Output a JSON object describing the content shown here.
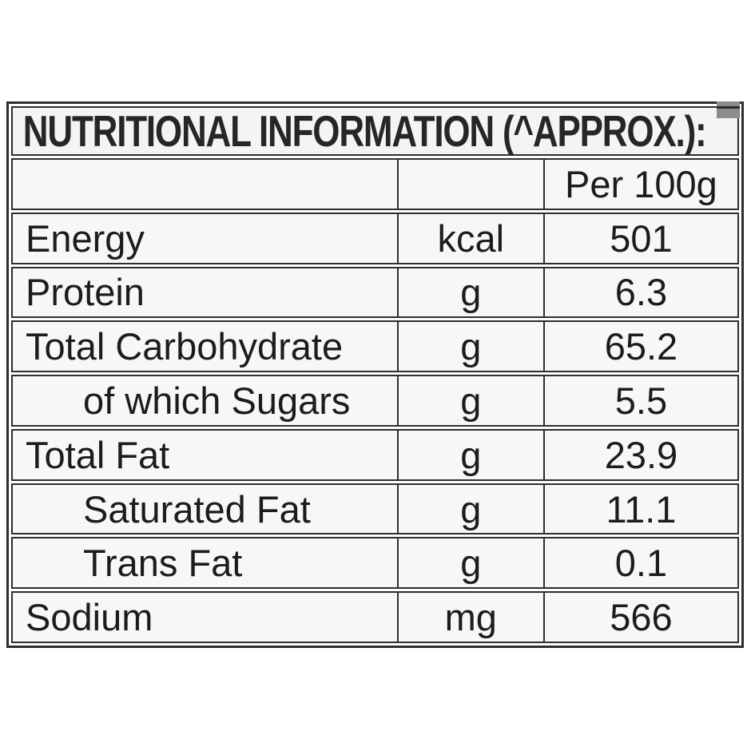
{
  "page": {
    "background": "#ffffff"
  },
  "table": {
    "title": "NUTRITIONAL INFORMATION (^APPROX.):",
    "corner_marker_color": "#8c8c8c",
    "border_color": "#2e2e2e",
    "text_color": "#1c1c1c",
    "cell_background": "#f7f7f6",
    "columns": {
      "label_header": "",
      "unit_header": "",
      "value_header": "Per 100g"
    },
    "rows": [
      {
        "label": "Energy",
        "unit": "kcal",
        "value": "501",
        "indent": false
      },
      {
        "label": "Protein",
        "unit": "g",
        "value": "6.3",
        "indent": false
      },
      {
        "label": "Total Carbohydrate",
        "unit": "g",
        "value": "65.2",
        "indent": false
      },
      {
        "label": "of which Sugars",
        "unit": "g",
        "value": "5.5",
        "indent": true
      },
      {
        "label": "Total Fat",
        "unit": "g",
        "value": "23.9",
        "indent": false
      },
      {
        "label": "Saturated Fat",
        "unit": "g",
        "value": "11.1",
        "indent": true
      },
      {
        "label": "Trans Fat",
        "unit": "g",
        "value": "0.1",
        "indent": true
      },
      {
        "label": "Sodium",
        "unit": "mg",
        "value": "566",
        "indent": false
      }
    ]
  }
}
